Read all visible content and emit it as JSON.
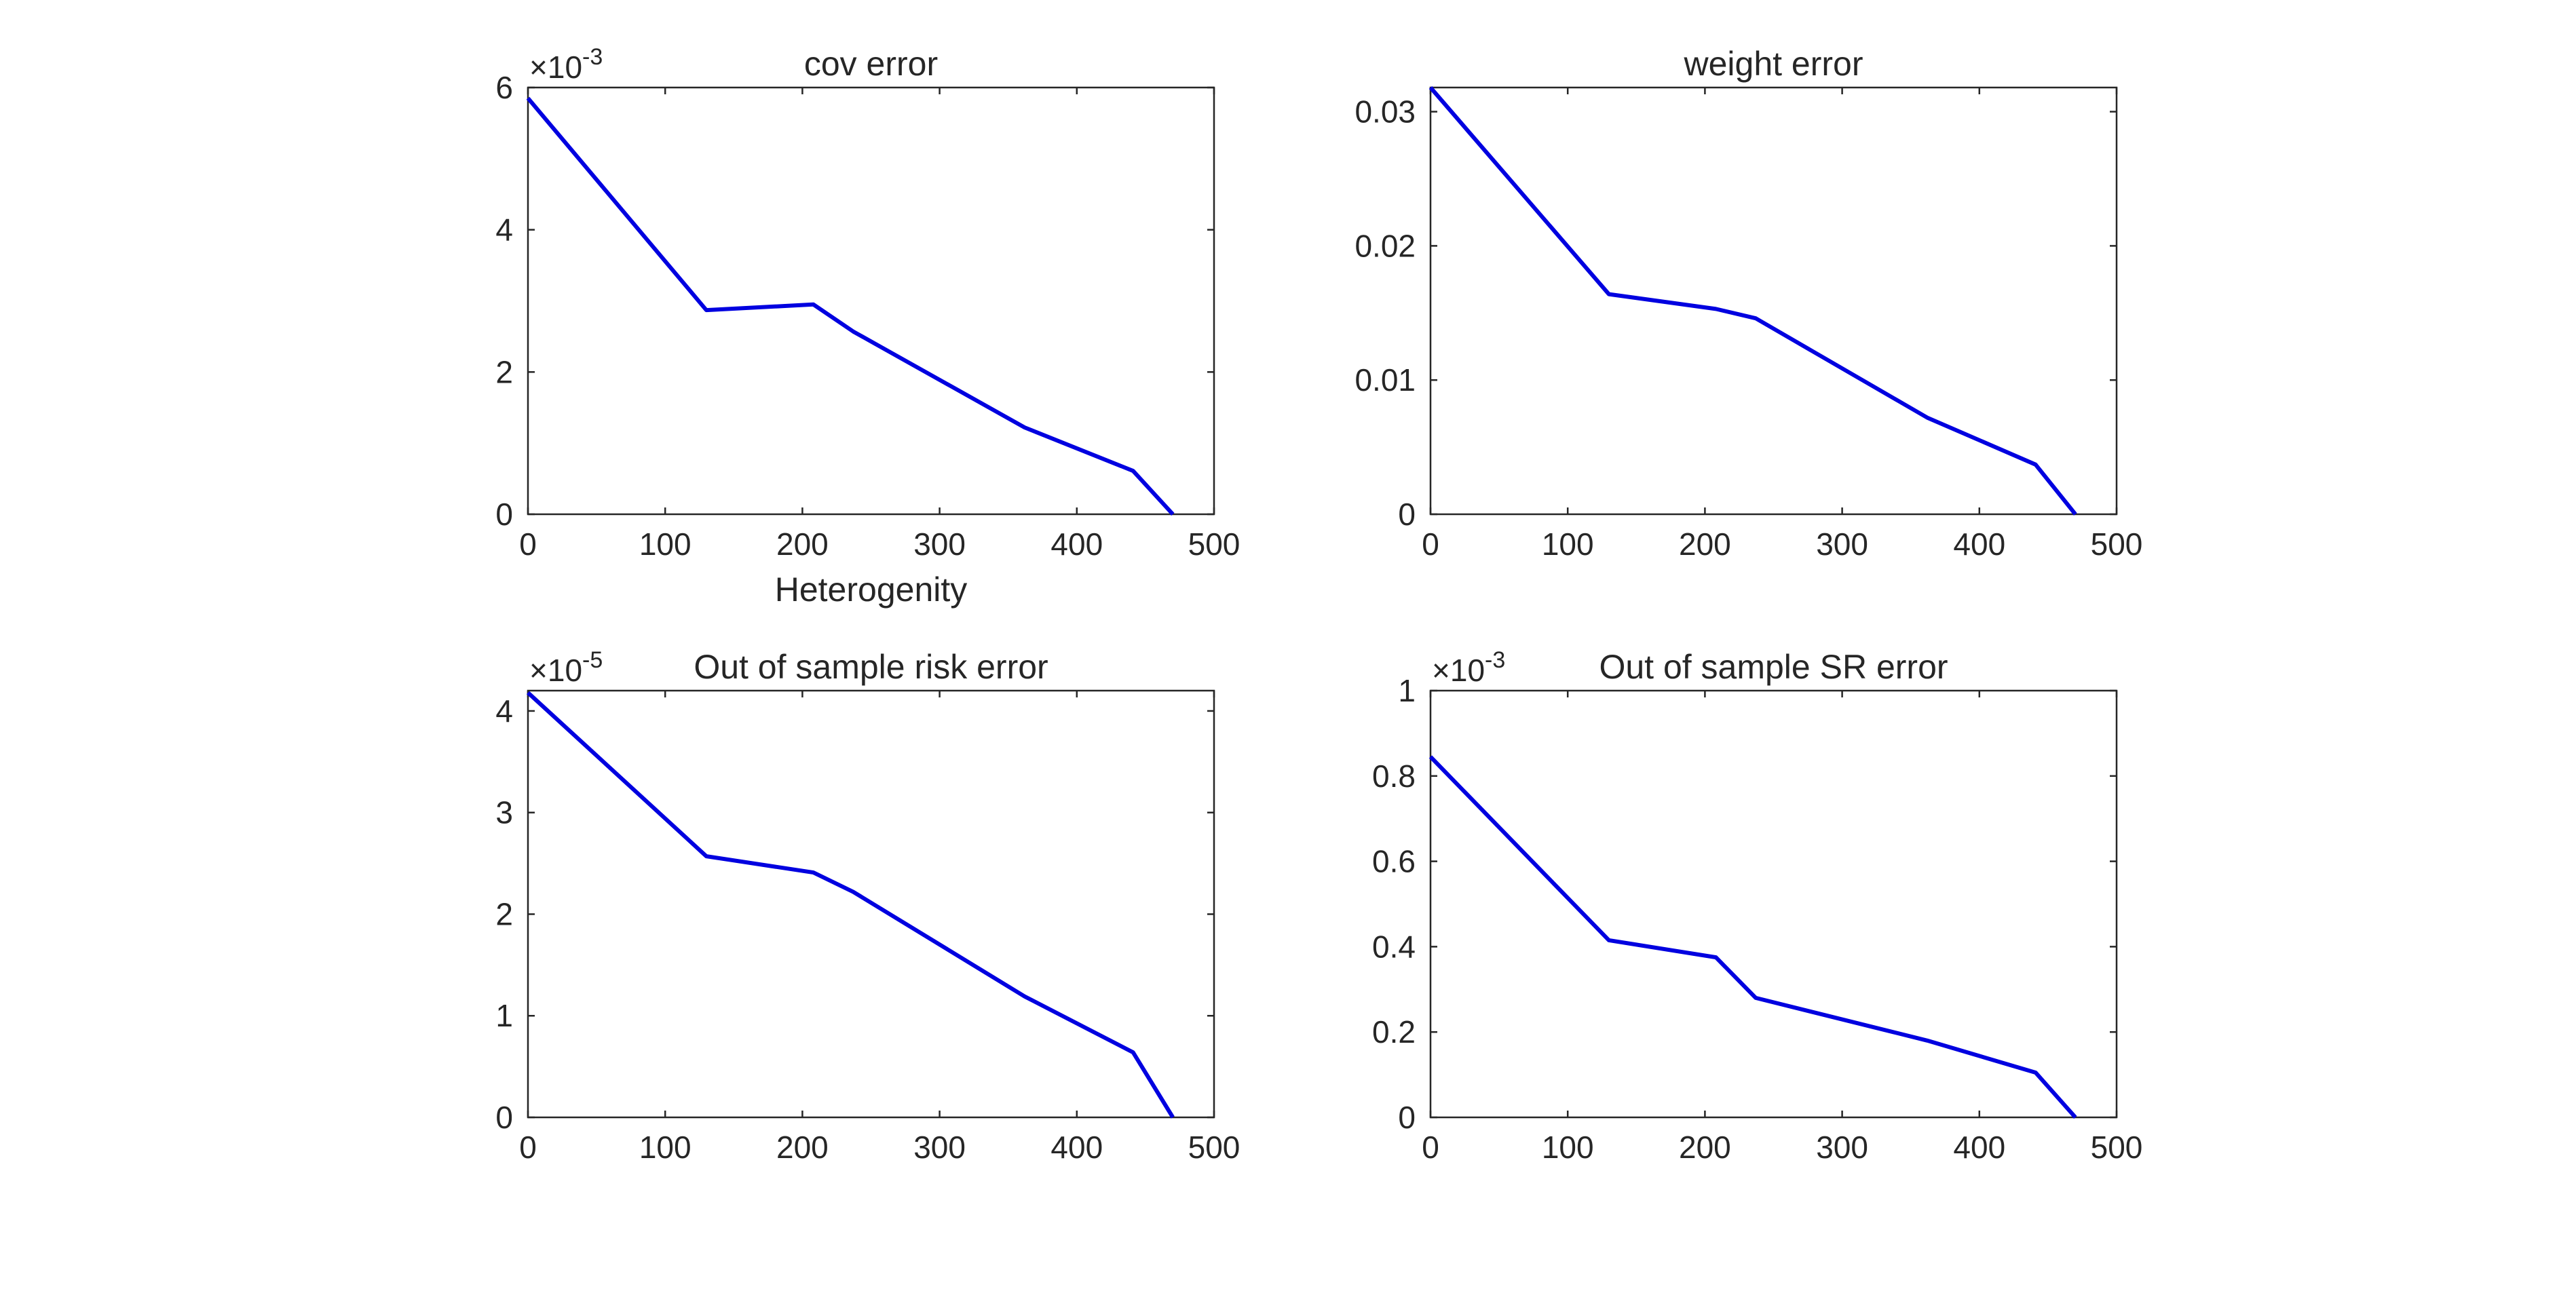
{
  "line_color": "#0000e0",
  "chart_data": [
    {
      "type": "line",
      "title": "cov error",
      "xlabel": "Heterogenity",
      "ylabel": "",
      "multiplier": "×10",
      "multiplier_exponent": "-3",
      "xlim": [
        0,
        500
      ],
      "ylim": [
        0,
        6
      ],
      "x_ticks": [
        "0",
        "100",
        "200",
        "300",
        "400",
        "500"
      ],
      "y_ticks": [
        "0",
        "2",
        "4",
        "6"
      ],
      "grid": false,
      "series": [
        {
          "x": [
            0,
            130,
            208,
            237,
            362,
            441,
            470
          ],
          "y": [
            5.85,
            2.87,
            2.95,
            2.57,
            1.22,
            0.61,
            0.0
          ]
        }
      ]
    },
    {
      "type": "line",
      "title": "weight error",
      "xlabel": "",
      "ylabel": "",
      "multiplier": "",
      "multiplier_exponent": "",
      "xlim": [
        0,
        500
      ],
      "ylim": [
        0,
        0.0318
      ],
      "x_ticks": [
        "0",
        "100",
        "200",
        "300",
        "400",
        "500"
      ],
      "y_ticks": [
        "0",
        "0.01",
        "0.02",
        "0.03"
      ],
      "grid": false,
      "series": [
        {
          "x": [
            0,
            130,
            208,
            237,
            362,
            441,
            470
          ],
          "y": [
            0.0318,
            0.0164,
            0.0153,
            0.0146,
            0.0072,
            0.0037,
            0.0
          ]
        }
      ]
    },
    {
      "type": "line",
      "title": "Out of sample risk error",
      "xlabel": "",
      "ylabel": "",
      "multiplier": "×10",
      "multiplier_exponent": "-5",
      "xlim": [
        0,
        500
      ],
      "ylim": [
        0,
        4.2
      ],
      "x_ticks": [
        "0",
        "100",
        "200",
        "300",
        "400",
        "500"
      ],
      "y_ticks": [
        "0",
        "1",
        "2",
        "3",
        "4"
      ],
      "grid": false,
      "series": [
        {
          "x": [
            0,
            130,
            208,
            237,
            362,
            441,
            470
          ],
          "y": [
            4.18,
            2.57,
            2.41,
            2.22,
            1.19,
            0.64,
            0.0
          ]
        }
      ]
    },
    {
      "type": "line",
      "title": "Out of sample SR error",
      "xlabel": "",
      "ylabel": "",
      "multiplier": "×10",
      "multiplier_exponent": "-3",
      "xlim": [
        0,
        500
      ],
      "ylim": [
        0,
        1
      ],
      "x_ticks": [
        "0",
        "100",
        "200",
        "300",
        "400",
        "500"
      ],
      "y_ticks": [
        "0",
        "0.2",
        "0.4",
        "0.6",
        "0.8",
        "1"
      ],
      "grid": false,
      "series": [
        {
          "x": [
            0,
            130,
            208,
            237,
            362,
            441,
            470
          ],
          "y": [
            0.845,
            0.415,
            0.375,
            0.28,
            0.18,
            0.105,
            0.0
          ]
        }
      ]
    }
  ]
}
